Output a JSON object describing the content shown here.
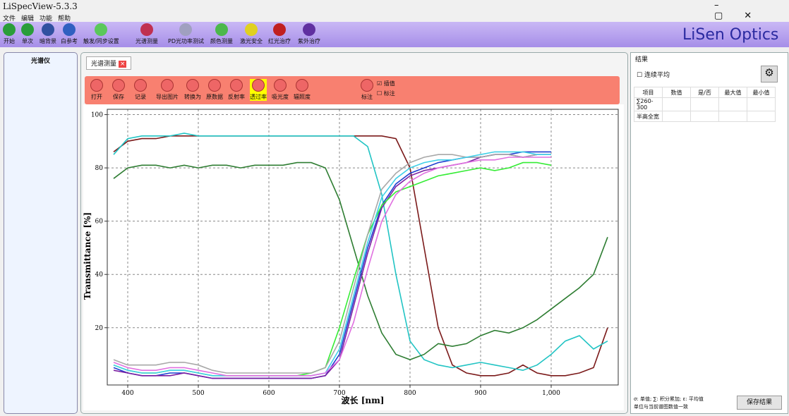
{
  "app": {
    "title": "LiSpecView-5.3.3",
    "menu": [
      "文件",
      "编辑",
      "功能",
      "帮助"
    ],
    "toolbar": [
      "开始",
      "单次",
      "暗背景",
      "白参考",
      "触发/同步设置",
      "光谱测量",
      "PD光功率测试",
      "颜色测量",
      "激光安全",
      "红光治疗",
      "紫外治疗"
    ],
    "logo": "LiSen Optics",
    "left_panel": "光谱仪",
    "tab": "光谱测量",
    "chart_toolbar": [
      "打开",
      "保存",
      "记录",
      "导出图片",
      "转换为",
      "原数据",
      "反射率",
      "透过率",
      "吸光度",
      "辐照度",
      "标注"
    ],
    "checkboxes": [
      "插值",
      "标注"
    ]
  },
  "results": {
    "title": "结果",
    "option": "连续平均",
    "headers": [
      "项目",
      "数值",
      "是/否",
      "最大值",
      "最小值"
    ],
    "rows": [
      "∑260-300",
      "半高全宽"
    ],
    "legend": "σ: 单值; ∑: 积分累加; ε: 平均值",
    "note": "单位与当前谱图数值一致",
    "button": "保存结果"
  },
  "chart_data": {
    "type": "line",
    "xlabel": "波长 [nm]",
    "ylabel": "Transmittance [%]",
    "x": [
      380,
      400,
      420,
      440,
      460,
      480,
      500,
      520,
      540,
      560,
      580,
      600,
      620,
      640,
      660,
      680,
      700,
      720,
      740,
      760,
      780,
      800,
      820,
      840,
      860,
      880,
      900,
      920,
      940,
      960,
      980,
      1000,
      1020,
      1040,
      1060,
      1080
    ],
    "series": [
      {
        "color": "#7b1a1a",
        "values": [
          86,
          90,
          91,
          91,
          92,
          92,
          92,
          92,
          92,
          92,
          92,
          92,
          92,
          92,
          92,
          92,
          92,
          92,
          92,
          92,
          91,
          80,
          50,
          20,
          6,
          3,
          2,
          2,
          3,
          6,
          3,
          2,
          2,
          3,
          5,
          20
        ]
      },
      {
        "color": "#22c4c4",
        "values": [
          85,
          91,
          92,
          92,
          92,
          93,
          92,
          92,
          92,
          92,
          92,
          92,
          92,
          92,
          92,
          92,
          92,
          92,
          88,
          70,
          40,
          15,
          8,
          6,
          5,
          6,
          7,
          6,
          5,
          4,
          6,
          10,
          15,
          17,
          12,
          15
        ]
      },
      {
        "color": "#2e7d32",
        "values": [
          76,
          80,
          81,
          81,
          80,
          81,
          80,
          81,
          81,
          80,
          81,
          81,
          81,
          82,
          82,
          80,
          68,
          50,
          32,
          18,
          10,
          8,
          10,
          14,
          13,
          14,
          17,
          19,
          18,
          20,
          23,
          27,
          31,
          35,
          40,
          54
        ]
      },
      {
        "color": "#1f3fd0",
        "values": [
          5,
          3,
          2,
          2,
          3,
          3,
          2,
          1,
          1,
          1,
          1,
          1,
          1,
          1,
          1,
          2,
          10,
          30,
          50,
          66,
          74,
          78,
          80,
          82,
          83,
          84,
          84,
          85,
          85,
          86,
          86,
          86,
          null,
          null,
          null,
          null
        ]
      },
      {
        "color": "#7b1fa2",
        "values": [
          4,
          3,
          2,
          2,
          2,
          3,
          2,
          1,
          1,
          1,
          1,
          1,
          1,
          1,
          1,
          2,
          8,
          28,
          48,
          65,
          73,
          77,
          79,
          80,
          81,
          82,
          84,
          85,
          85,
          84,
          85,
          85,
          null,
          null,
          null,
          null
        ]
      },
      {
        "color": "#35ec35",
        "values": [
          6,
          4,
          3,
          3,
          4,
          4,
          3,
          2,
          2,
          2,
          2,
          2,
          2,
          2,
          3,
          5,
          20,
          38,
          55,
          66,
          71,
          73,
          75,
          77,
          78,
          79,
          80,
          79,
          80,
          82,
          82,
          81,
          null,
          null,
          null,
          null
        ]
      },
      {
        "color": "#a8a8a8",
        "values": [
          8,
          6,
          6,
          6,
          7,
          7,
          6,
          4,
          3,
          3,
          3,
          3,
          3,
          3,
          3,
          5,
          15,
          35,
          55,
          72,
          78,
          82,
          84,
          85,
          85,
          84,
          84,
          85,
          85,
          84,
          85,
          85,
          null,
          null,
          null,
          null
        ]
      },
      {
        "color": "#40d0e8",
        "values": [
          6,
          4,
          3,
          3,
          4,
          4,
          3,
          2,
          2,
          2,
          2,
          2,
          2,
          2,
          2,
          3,
          12,
          32,
          52,
          69,
          76,
          80,
          82,
          83,
          83,
          84,
          85,
          86,
          86,
          86,
          85,
          85,
          null,
          null,
          null,
          null
        ]
      },
      {
        "color": "#e070e0",
        "values": [
          7,
          5,
          4,
          4,
          5,
          5,
          4,
          3,
          2,
          2,
          2,
          2,
          2,
          2,
          2,
          3,
          8,
          22,
          42,
          60,
          70,
          75,
          78,
          80,
          81,
          82,
          83,
          83,
          84,
          84,
          84,
          84,
          null,
          null,
          null,
          null
        ]
      }
    ],
    "xlim": [
      371,
      1095
    ],
    "ylim": [
      -1.5,
      102
    ],
    "xticks": [
      400,
      500,
      600,
      700,
      800,
      900,
      {
        "value": 1000,
        "label": "1,000"
      }
    ],
    "yticks": [
      20,
      40,
      60,
      80,
      100
    ],
    "grid": true
  }
}
